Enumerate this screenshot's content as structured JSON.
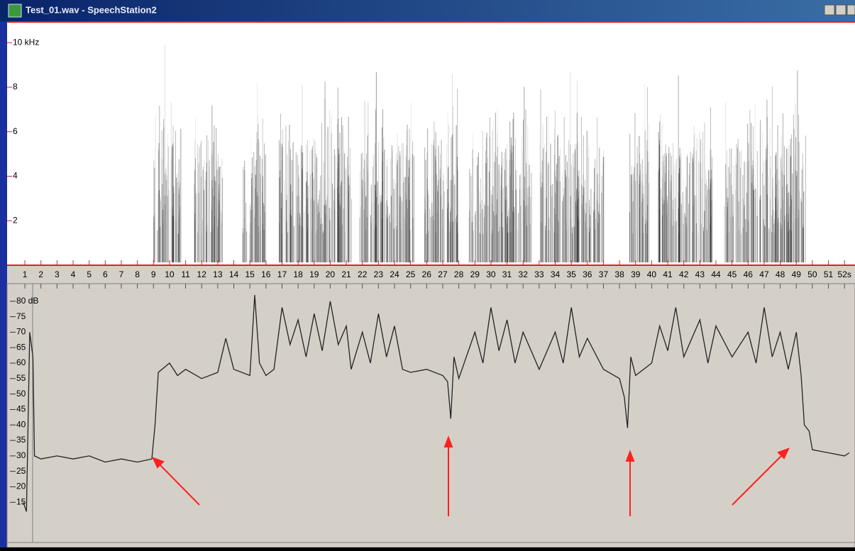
{
  "window": {
    "title": "Test_01.wav - SpeechStation2"
  },
  "spectrogram": {
    "ylim": [
      0,
      10.9
    ],
    "yticks": [
      {
        "value": 10,
        "label": "10 kHz"
      },
      8,
      6,
      4,
      2
    ]
  },
  "time_axis": {
    "xlim": [
      0.6,
      52.3
    ],
    "xticks": [
      1,
      2,
      3,
      4,
      5,
      6,
      7,
      8,
      9,
      10,
      11,
      12,
      13,
      14,
      15,
      16,
      17,
      18,
      19,
      20,
      21,
      22,
      23,
      24,
      25,
      26,
      27,
      28,
      29,
      30,
      31,
      32,
      33,
      34,
      35,
      36,
      37,
      38,
      39,
      40,
      41,
      42,
      43,
      44,
      45,
      46,
      47,
      48,
      49,
      50,
      51,
      {
        "value": 52,
        "label": "52s"
      }
    ]
  },
  "level_plot": {
    "ylim": [
      2,
      85
    ],
    "yticks": [
      {
        "value": 80,
        "label": "80 dB"
      },
      75,
      70,
      65,
      60,
      55,
      50,
      45,
      40,
      35,
      30,
      25,
      20,
      15
    ],
    "x": [
      0.9,
      1.1,
      1.3,
      1.5,
      1.6,
      2,
      3,
      4,
      5,
      6,
      7,
      8,
      8.9,
      9.1,
      9.3,
      10,
      10.5,
      11,
      12,
      13,
      13.5,
      14,
      15,
      15.3,
      15.6,
      16,
      16.5,
      17,
      17.5,
      18,
      18.5,
      19,
      19.5,
      20,
      20.5,
      21,
      21.3,
      22,
      22.5,
      23,
      23.5,
      24,
      24.5,
      25,
      26,
      27,
      27.3,
      27.5,
      27.7,
      28,
      29,
      29.5,
      30,
      30.5,
      31,
      31.5,
      32,
      33,
      34,
      34.5,
      35,
      35.5,
      36,
      37,
      38,
      38.3,
      38.5,
      38.7,
      39,
      40,
      40.5,
      41,
      41.5,
      42,
      43,
      43.5,
      44,
      45,
      46,
      46.5,
      47,
      47.5,
      48,
      48.5,
      49,
      49.3,
      49.5,
      49.8,
      50,
      51,
      52,
      52.3
    ],
    "values": [
      15,
      12,
      70,
      62,
      30,
      29,
      30,
      29,
      30,
      28,
      29,
      28,
      29,
      40,
      57,
      60,
      56,
      58,
      55,
      57,
      68,
      58,
      56,
      82,
      60,
      56,
      58,
      78,
      66,
      74,
      62,
      76,
      64,
      80,
      66,
      72,
      58,
      70,
      60,
      76,
      62,
      72,
      58,
      57,
      58,
      56,
      54,
      42,
      62,
      55,
      70,
      60,
      78,
      64,
      74,
      60,
      70,
      58,
      70,
      60,
      78,
      62,
      68,
      58,
      55,
      49,
      39,
      62,
      56,
      60,
      72,
      64,
      78,
      62,
      74,
      60,
      72,
      62,
      70,
      60,
      78,
      62,
      70,
      58,
      70,
      56,
      40,
      38,
      32,
      31,
      30,
      31
    ]
  }
}
